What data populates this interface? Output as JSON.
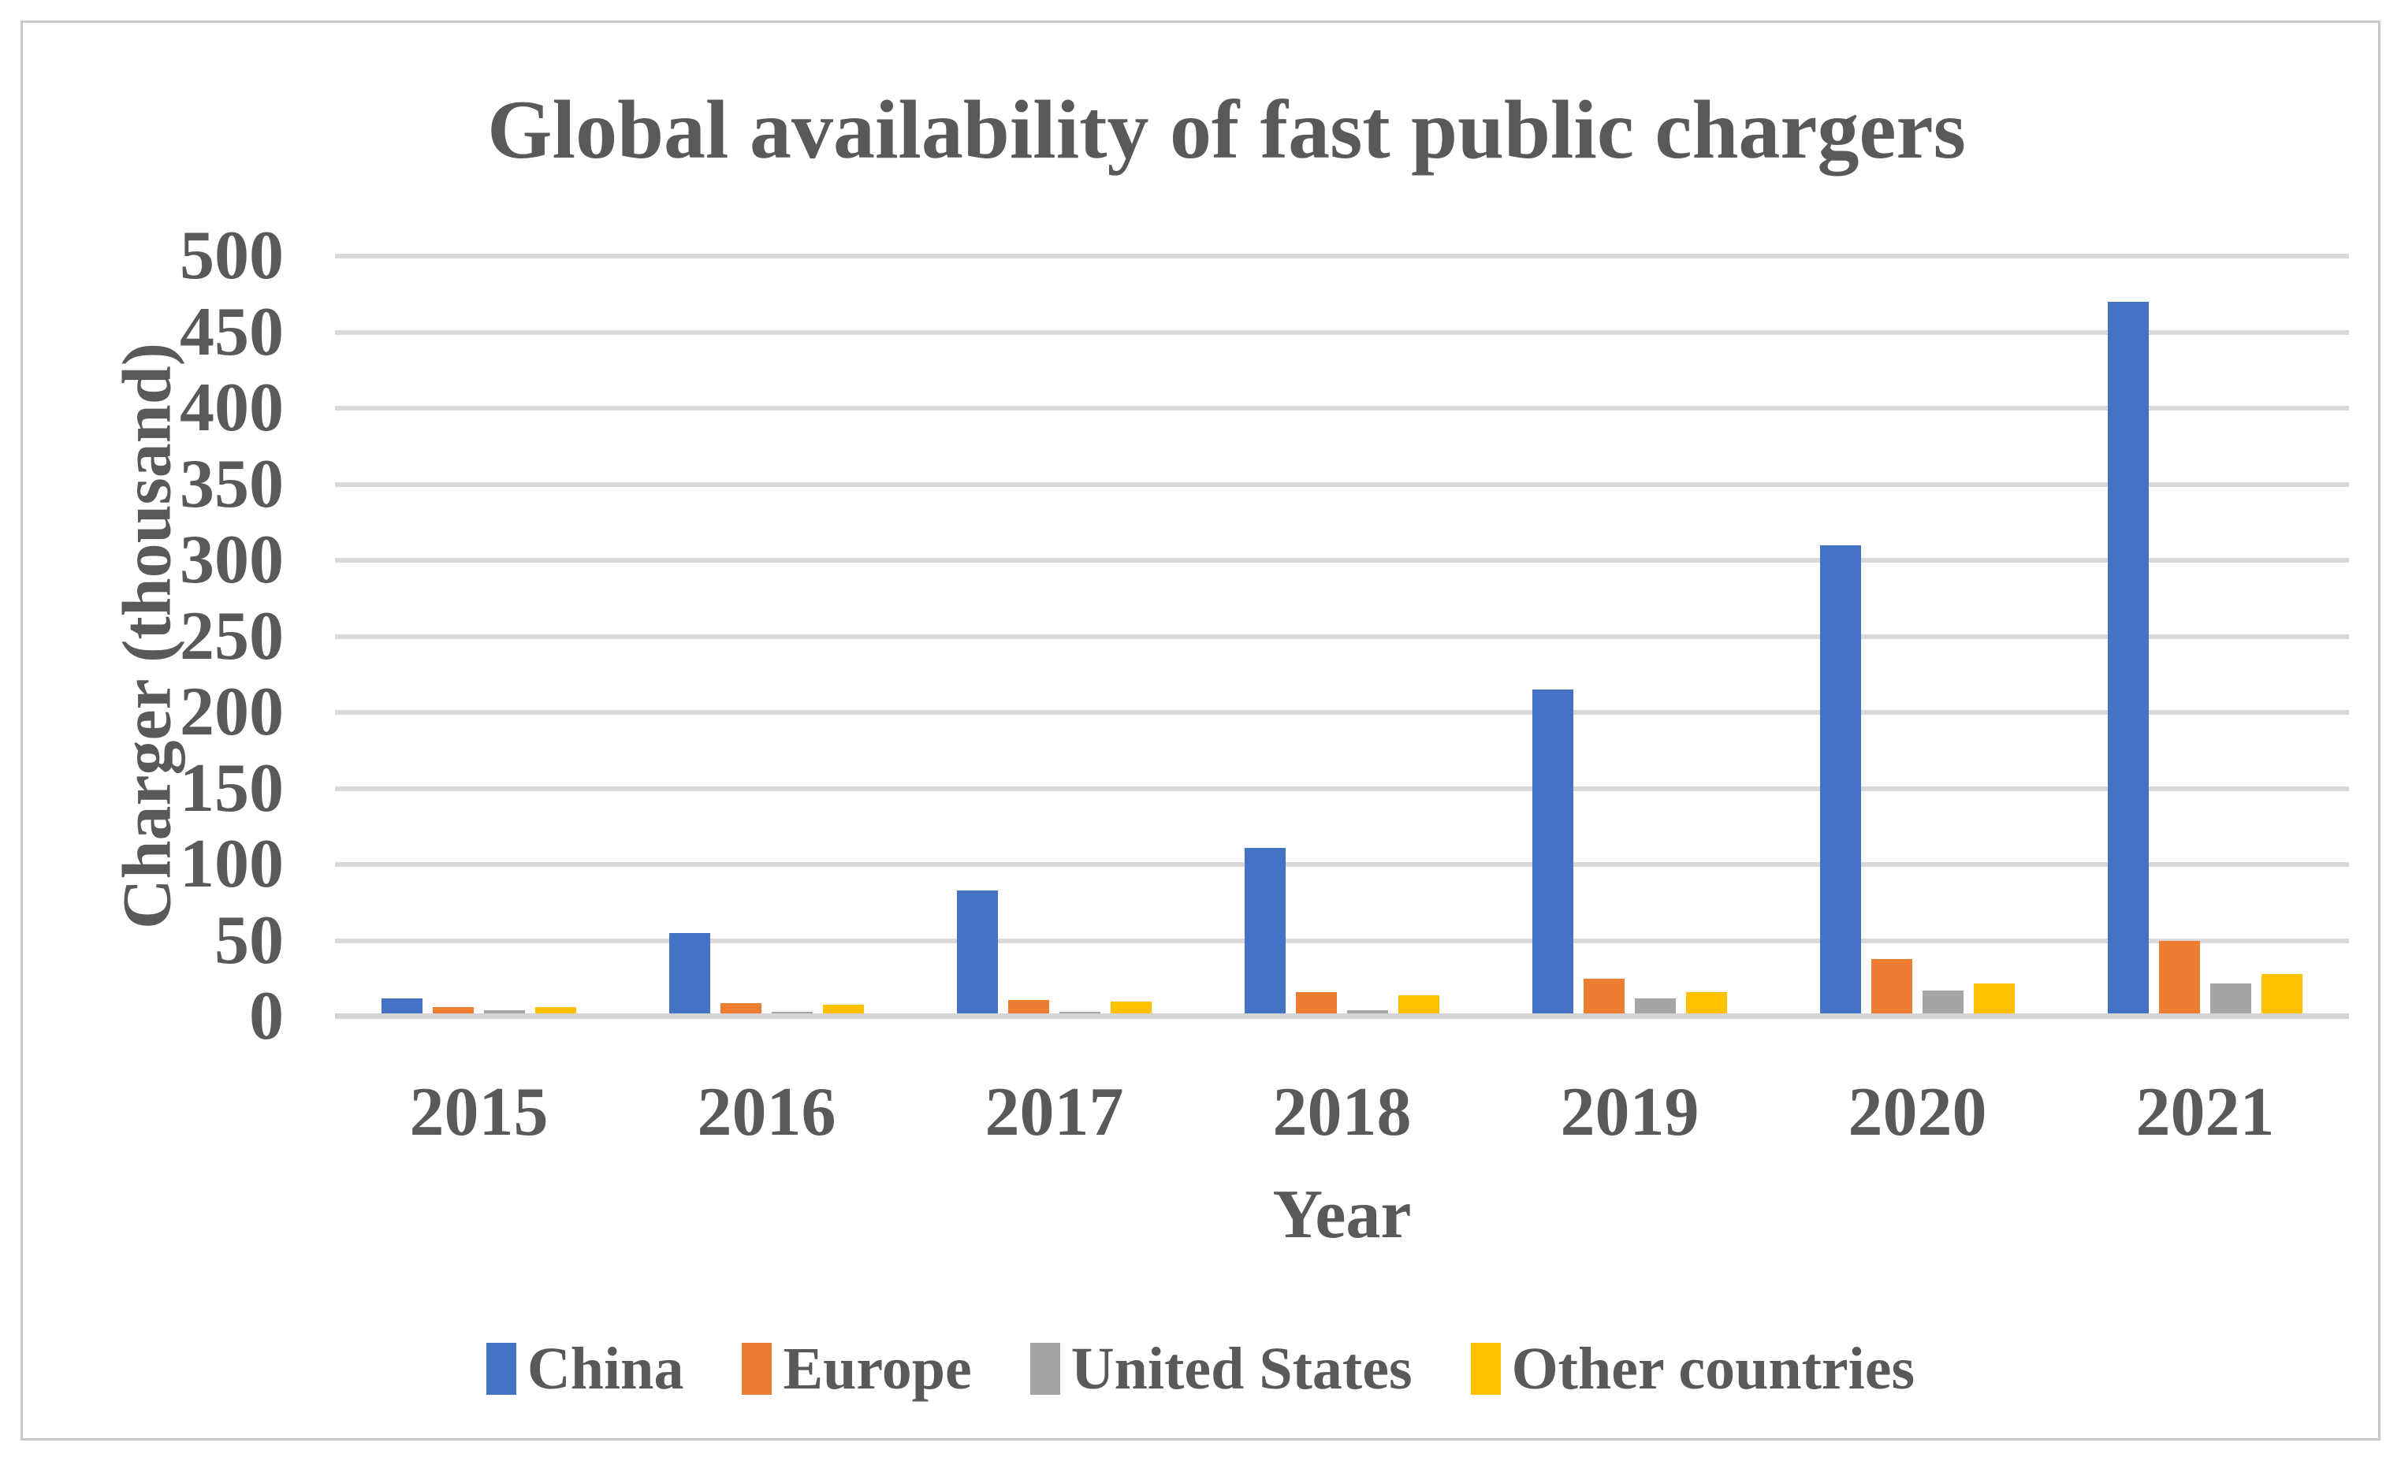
{
  "colors": {
    "background": "#FFFFFF",
    "frame_border": "#C9C9C9",
    "text": "#595959",
    "gridline": "#D9D9D9",
    "axis_line": "#D4D4D4",
    "series_china": "#4472C4",
    "series_europe": "#ED7D31",
    "series_united_states": "#A5A5A5",
    "series_other_countries": "#FFC000"
  },
  "chart_data": {
    "type": "bar",
    "title": "Global availability of fast public chargers",
    "xlabel": "Year",
    "ylabel": "Charger (thousand)",
    "categories": [
      "2015",
      "2016",
      "2017",
      "2018",
      "2019",
      "2020",
      "2021"
    ],
    "series": [
      {
        "name": "China",
        "color": "#4472C4",
        "values": [
          12,
          55,
          83,
          111,
          215,
          310,
          470
        ]
      },
      {
        "name": "Europe",
        "color": "#ED7D31",
        "values": [
          6,
          9,
          11,
          16,
          25,
          38,
          50
        ]
      },
      {
        "name": "United States",
        "color": "#A5A5A5",
        "values": [
          4,
          3,
          3,
          4,
          12,
          17,
          22
        ]
      },
      {
        "name": "Other countries",
        "color": "#FFC000",
        "values": [
          6,
          8,
          10,
          14,
          16,
          22,
          28
        ]
      }
    ],
    "ylim": [
      0,
      500
    ],
    "yticks": [
      0,
      50,
      100,
      150,
      200,
      250,
      300,
      350,
      400,
      450,
      500
    ],
    "grid": true,
    "legend_position": "bottom"
  }
}
